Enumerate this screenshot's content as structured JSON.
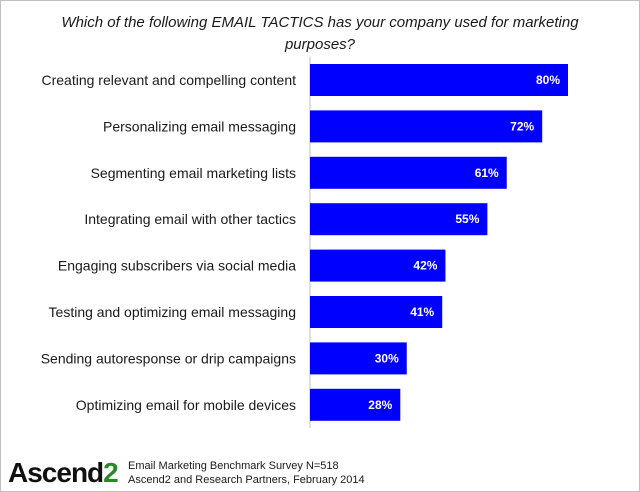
{
  "chart_data": {
    "type": "bar",
    "orientation": "horizontal",
    "title": "Which of the following EMAIL TACTICS has your company used for marketing purposes?",
    "categories": [
      "Creating relevant and compelling content",
      "Personalizing email messaging",
      "Segmenting email marketing lists",
      "Integrating email with other tactics",
      "Engaging subscribers via social media",
      "Testing and optimizing email messaging",
      "Sending autoresponse or drip campaigns",
      "Optimizing email for mobile devices"
    ],
    "values": [
      80,
      72,
      61,
      55,
      42,
      41,
      30,
      28
    ],
    "data_labels": [
      "80%",
      "72%",
      "61%",
      "55%",
      "42%",
      "41%",
      "30%",
      "28%"
    ],
    "unit": "%",
    "xlim": [
      0,
      100
    ],
    "bar_color": "#0000ff",
    "grid": false,
    "legend": "none"
  },
  "logo": {
    "main": "Ascend",
    "suffix": "2"
  },
  "footer": {
    "line1": "Email Marketing Benchmark Survey N=518",
    "line2": "Ascend2 and Research Partners, February 2014"
  }
}
